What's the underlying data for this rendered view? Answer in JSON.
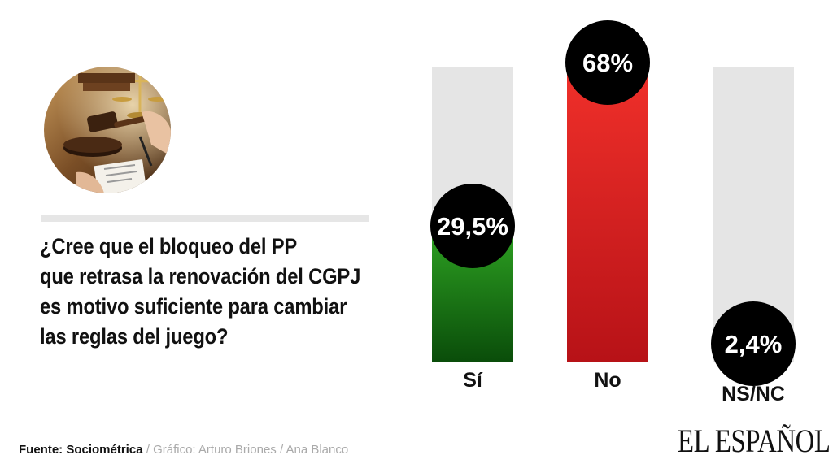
{
  "question": {
    "lines": [
      "¿Cree que el bloqueo del PP",
      "que retrasa la renovación del CGPJ",
      "es motivo suficiente para cambiar",
      "las reglas del juego?"
    ]
  },
  "chart_data": {
    "type": "bar",
    "categories": [
      "Sí",
      "No",
      "NS/NC"
    ],
    "values": [
      29.5,
      68,
      2.4
    ],
    "value_labels": [
      "29,5%",
      "68%",
      "2,4%"
    ],
    "ylim": [
      0,
      68
    ],
    "colors": {
      "track": "#e5e5e5",
      "bars": [
        [
          "#2c9e21",
          "#0a4d0a"
        ],
        [
          "#f0302a",
          "#b71217"
        ],
        [
          "#e5e5e5",
          "#e5e5e5"
        ]
      ],
      "bubble": "#000000"
    }
  },
  "footer": {
    "source": "Fuente: Sociométrica",
    "separator": " / ",
    "credit": "Gráfico: Arturo Briones / Ana Blanco"
  },
  "logo": "EL ESPAÑOL"
}
